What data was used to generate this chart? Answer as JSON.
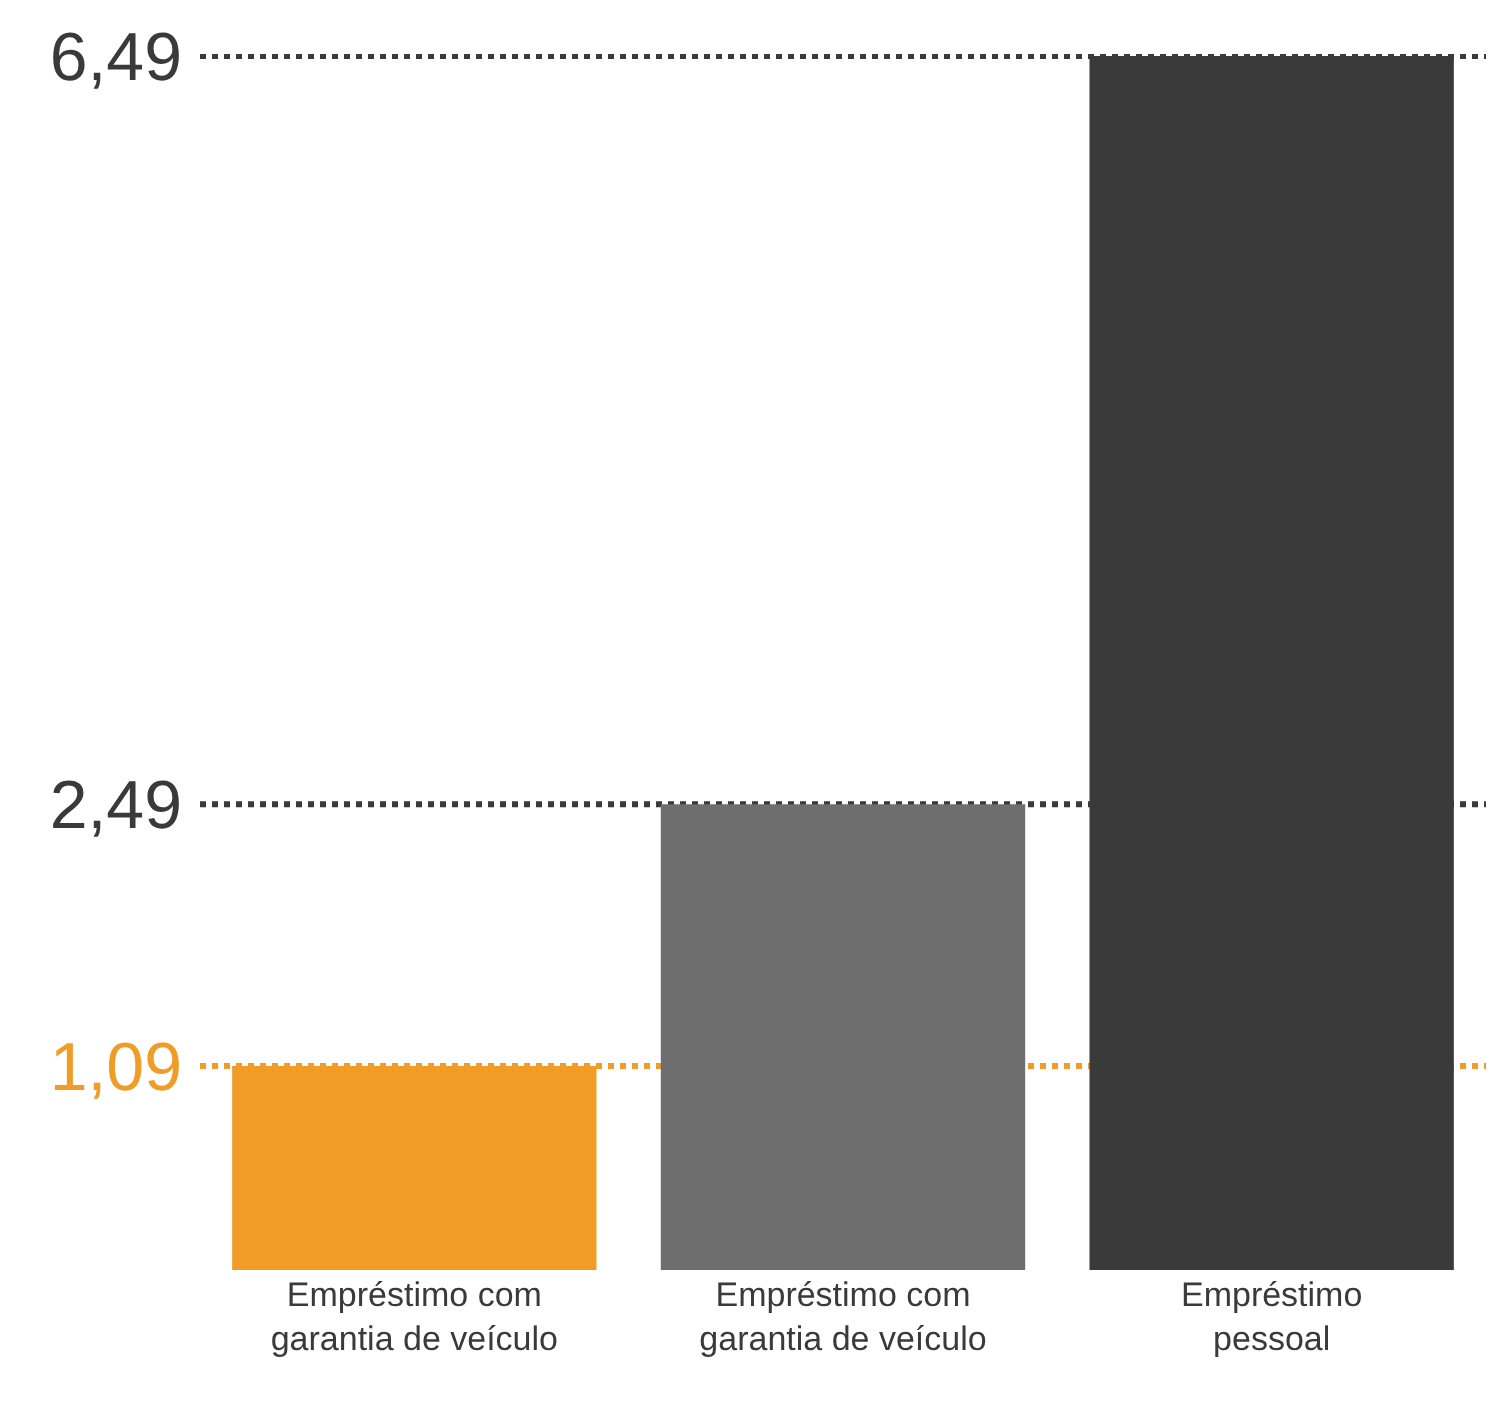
{
  "chart_data": {
    "type": "bar",
    "categories": [
      "Empréstimo com\ngarantia de veículo",
      "Empréstimo com\ngarantia de veículo",
      "Empréstimo\npessoal"
    ],
    "values": [
      1.09,
      2.49,
      6.49
    ],
    "colors": [
      "#f09c26",
      "#6e6e6e",
      "#3a3a3a"
    ],
    "ylim": [
      0,
      6.5
    ],
    "yticks": [
      {
        "value": 1.09,
        "label": "1,09"
      },
      {
        "value": 2.49,
        "label": "2,49"
      },
      {
        "value": 6.49,
        "label": "6,49"
      }
    ],
    "ref_lines": [
      {
        "axis": "y",
        "value": 1.09,
        "color": "#f09c26",
        "line_style": "dotted"
      },
      {
        "axis": "y",
        "value": 2.49,
        "color": "#3a3a3a",
        "line_style": "dotted"
      },
      {
        "axis": "y",
        "value": 6.49,
        "color": "#3a3a3a",
        "line_style": "dotted"
      }
    ]
  }
}
